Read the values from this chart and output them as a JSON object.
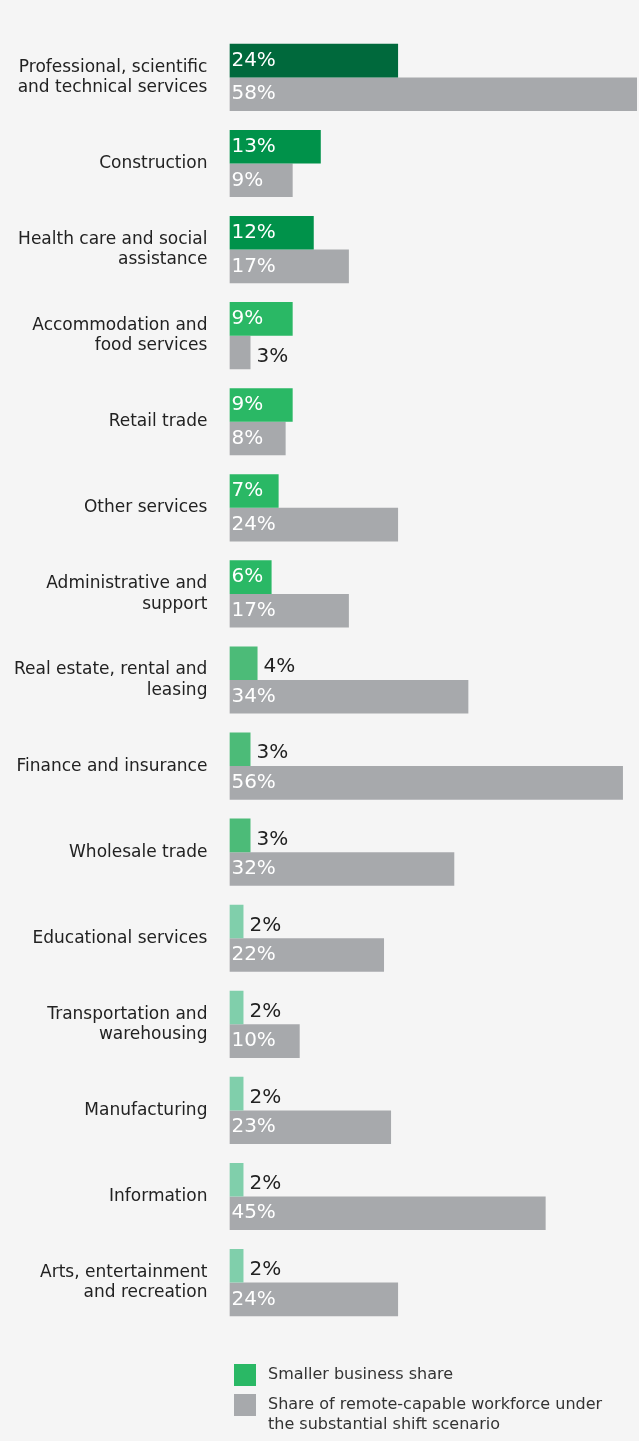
{
  "chart_data": {
    "type": "bar",
    "orientation": "horizontal",
    "categories": [
      "Professional, scientific and technical services",
      "Construction",
      "Health care and social assistance",
      "Accommodation and food services",
      "Retail trade",
      "Other services",
      "Administrative and support",
      "Real estate, rental and leasing",
      "Finance and insurance",
      "Wholesale trade",
      "Educational services",
      "Transportation and warehousing",
      "Manufacturing",
      "Information",
      "Arts, entertainment and recreation"
    ],
    "series": [
      {
        "name": "Smaller business share",
        "color": "#2ab865",
        "colors": [
          "#00693c",
          "#00924a",
          "#00924a",
          "#2ab865",
          "#2ab865",
          "#2ab865",
          "#2ab865",
          "#4cbb78",
          "#4cbb78",
          "#4cbb78",
          "#80cfab",
          "#80cfab",
          "#80cfab",
          "#80cfab",
          "#80cfab"
        ],
        "values": [
          24,
          13,
          12,
          9,
          9,
          7,
          6,
          4,
          3,
          3,
          2,
          2,
          2,
          2,
          2
        ],
        "value_labels": [
          "24%",
          "13%",
          "12%",
          "9%",
          "9%",
          "7%",
          "6%",
          "4%",
          "3%",
          "3%",
          "2%",
          "2%",
          "2%",
          "2%",
          "2%"
        ]
      },
      {
        "name": "Share of remote-capable workforce under the substantial shift scenario",
        "color": "#a7a9ac",
        "colors": [
          "#a7a9ac",
          "#a7a9ac",
          "#a7a9ac",
          "#a7a9ac",
          "#a7a9ac",
          "#a7a9ac",
          "#a7a9ac",
          "#a7a9ac",
          "#a7a9ac",
          "#a7a9ac",
          "#a7a9ac",
          "#a7a9ac",
          "#a7a9ac",
          "#a7a9ac",
          "#a7a9ac"
        ],
        "values": [
          58,
          9,
          17,
          3,
          8,
          24,
          17,
          34,
          56,
          32,
          22,
          10,
          23,
          45,
          24
        ],
        "value_labels": [
          "58%",
          "9%",
          "17%",
          "3%",
          "8%",
          "24%",
          "17%",
          "34%",
          "56%",
          "32%",
          "22%",
          "10%",
          "23%",
          "45%",
          "24%"
        ]
      }
    ],
    "legend": "bottom",
    "tick_labels": "y"
  }
}
